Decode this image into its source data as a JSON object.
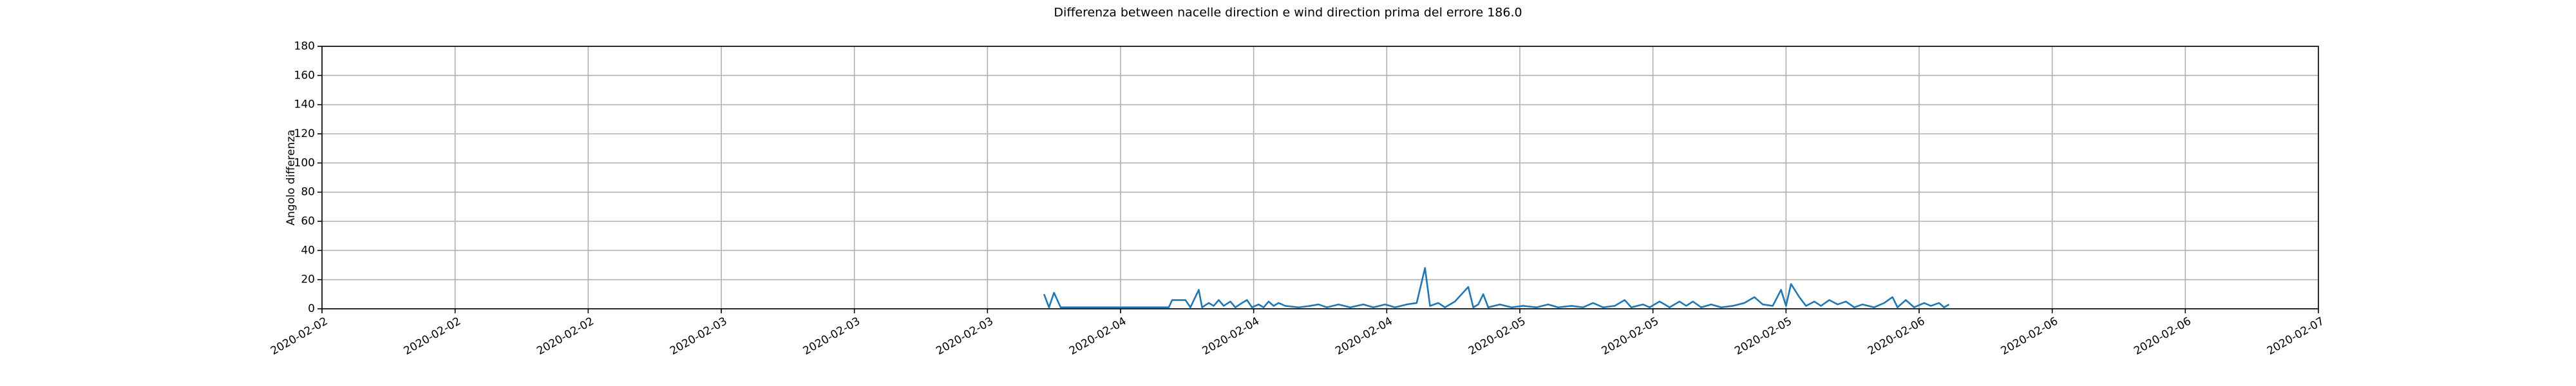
{
  "chart_data": {
    "type": "line",
    "title": "Differenza between nacelle direction e wind direction prima del errore 186.0",
    "y_label": "Angolo differenza",
    "grid": true,
    "xlim": [
      0,
      120
    ],
    "xticks": [
      {
        "value": 0,
        "label": "2020-02-02"
      },
      {
        "value": 8,
        "label": "2020-02-02"
      },
      {
        "value": 16,
        "label": "2020-02-02"
      },
      {
        "value": 24,
        "label": "2020-02-03"
      },
      {
        "value": 32,
        "label": "2020-02-03"
      },
      {
        "value": 40,
        "label": "2020-02-03"
      },
      {
        "value": 48,
        "label": "2020-02-04"
      },
      {
        "value": 56,
        "label": "2020-02-04"
      },
      {
        "value": 64,
        "label": "2020-02-04"
      },
      {
        "value": 72,
        "label": "2020-02-05"
      },
      {
        "value": 80,
        "label": "2020-02-05"
      },
      {
        "value": 88,
        "label": "2020-02-05"
      },
      {
        "value": 96,
        "label": "2020-02-06"
      },
      {
        "value": 104,
        "label": "2020-02-06"
      },
      {
        "value": 112,
        "label": "2020-02-06"
      },
      {
        "value": 120,
        "label": "2020-02-07"
      }
    ],
    "ylim": [
      0,
      180
    ],
    "yticks": [
      0,
      20,
      40,
      60,
      80,
      100,
      120,
      140,
      160,
      180
    ],
    "x": [
      43.4,
      43.7,
      44.0,
      44.4,
      50.9,
      51.1,
      51.9,
      52.2,
      52.7,
      52.9,
      53.3,
      53.6,
      53.9,
      54.2,
      54.6,
      54.9,
      55.3,
      55.6,
      55.9,
      56.3,
      56.6,
      56.9,
      57.2,
      57.5,
      57.9,
      58.7,
      59.4,
      59.9,
      60.4,
      61.1,
      61.8,
      62.6,
      63.2,
      63.9,
      64.5,
      65.2,
      65.8,
      66.3,
      66.6,
      67.1,
      67.5,
      68.1,
      68.9,
      69.2,
      69.5,
      69.8,
      70.1,
      70.8,
      71.5,
      72.2,
      73.0,
      73.7,
      74.3,
      75.1,
      75.8,
      76.4,
      77.0,
      77.7,
      78.3,
      78.7,
      79.4,
      79.8,
      80.4,
      81.0,
      81.6,
      82.0,
      82.4,
      82.9,
      83.5,
      84.1,
      84.8,
      85.5,
      86.1,
      86.6,
      87.2,
      87.7,
      88.0,
      88.3,
      88.8,
      89.2,
      89.7,
      90.1,
      90.6,
      91.1,
      91.6,
      92.1,
      92.6,
      93.3,
      93.9,
      94.4,
      94.7,
      95.2,
      95.7,
      96.3,
      96.7,
      97.2,
      97.5,
      97.8
    ],
    "series": [
      {
        "color": "#1f77b4",
        "values": [
          10,
          1,
          11,
          1,
          1,
          6,
          6,
          1,
          13,
          1,
          4,
          2,
          6,
          2,
          5,
          1,
          4,
          6,
          1,
          3,
          1,
          5,
          2,
          4,
          2,
          1,
          2,
          3,
          1,
          3,
          1,
          3,
          1,
          3,
          1,
          3,
          4,
          28,
          2,
          4,
          1,
          5,
          15,
          1,
          3,
          10,
          1,
          3,
          1,
          2,
          1,
          3,
          1,
          2,
          1,
          4,
          1,
          2,
          6,
          1,
          3,
          1,
          5,
          1,
          5,
          2,
          5,
          1,
          3,
          1,
          2,
          4,
          8,
          3,
          2,
          13,
          2,
          17,
          8,
          2,
          5,
          2,
          6,
          3,
          5,
          1,
          3,
          1,
          4,
          8,
          1,
          6,
          1,
          4,
          2,
          4,
          1,
          3
        ]
      }
    ]
  }
}
